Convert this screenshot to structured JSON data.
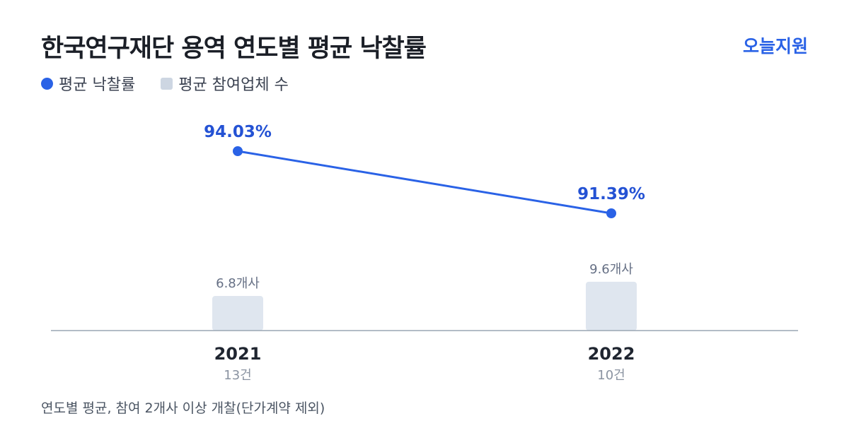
{
  "title": "한국연구재단 용역 연도별 평균 낙찰률",
  "brand": "오늘지원",
  "legend": {
    "rate": "평균 낙찰률",
    "count": "평균 참여업체 수"
  },
  "footnote": "연도별 평균, 참여 2개사 이상 개찰(단가계약 제외)",
  "colors": {
    "line": "#2a62e6",
    "bar": "#dfe6ef",
    "axis": "#9aa5b4"
  },
  "chart_data": {
    "type": "bar+line",
    "categories": [
      "2021",
      "2022"
    ],
    "sublabels": [
      "13건",
      "10건"
    ],
    "series": [
      {
        "name": "평균 낙찰률",
        "type": "line",
        "values": [
          94.03,
          91.39
        ],
        "labels": [
          "94.03%",
          "91.39%"
        ]
      },
      {
        "name": "평균 참여업체 수",
        "type": "bar",
        "values": [
          6.8,
          9.6
        ],
        "labels": [
          "6.8개사",
          "9.6개사"
        ]
      }
    ],
    "legend_position": "top-left",
    "grid": false
  }
}
